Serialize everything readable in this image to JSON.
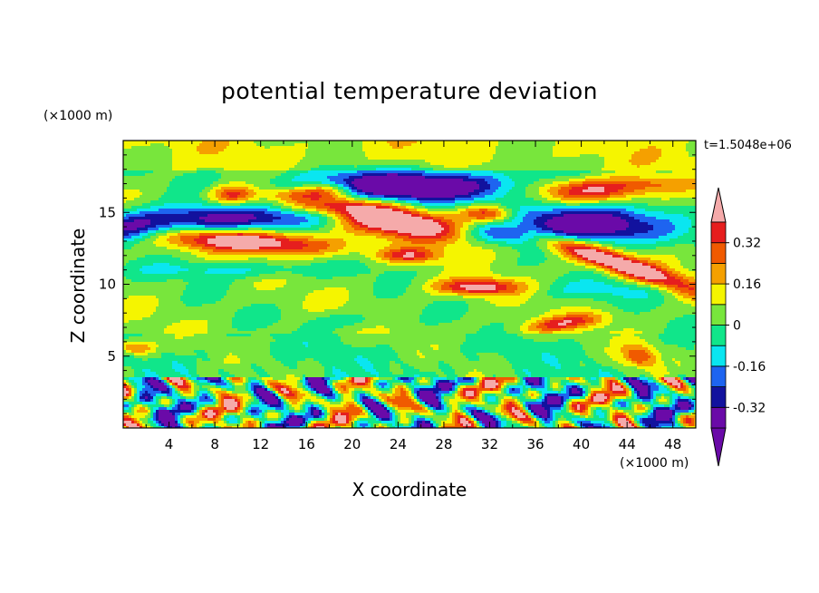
{
  "chart_data": {
    "type": "heatmap",
    "title": "potential temperature deviation",
    "xlabel": "X coordinate",
    "ylabel": "Z coordinate",
    "x_unit": "(×1000 m)",
    "z_unit": "(×1000 m)",
    "time_label": "t=1.5048e+06",
    "xlim": [
      0,
      50
    ],
    "ylim": [
      0,
      20
    ],
    "x_ticks": [
      4,
      8,
      12,
      16,
      20,
      24,
      28,
      32,
      36,
      40,
      44,
      48
    ],
    "y_ticks": [
      5,
      10,
      15
    ],
    "colorbar": {
      "levels": [
        -0.4,
        -0.32,
        -0.24,
        -0.16,
        -0.08,
        0,
        0.08,
        0.16,
        0.24,
        0.32,
        0.4
      ],
      "labels": [
        "0.32",
        "0.16",
        "0",
        "-0.16",
        "-0.32"
      ],
      "label_values": [
        0.32,
        0.16,
        0,
        -0.16,
        -0.32
      ],
      "colors": [
        "#6a0aa8",
        "#12129e",
        "#1e64f0",
        "#0ae6f0",
        "#10e68a",
        "#78e63c",
        "#f5f500",
        "#f5a000",
        "#f05a00",
        "#e61e1e"
      ],
      "under_color": "#6a0aa8",
      "over_color": "#f5aaaa"
    },
    "field_features": [
      {
        "region": "background",
        "value": 0.04
      },
      {
        "region": "warm band",
        "x": [
          17,
          30
        ],
        "z": [
          13.2,
          15.8
        ],
        "value": 0.5
      },
      {
        "region": "warm band",
        "x": [
          2,
          18
        ],
        "z": [
          12.2,
          13.4
        ],
        "value": 0.5
      },
      {
        "region": "warm band",
        "x": [
          36,
          50
        ],
        "z": [
          9.5,
          12.8
        ],
        "value": 0.5
      },
      {
        "region": "warm band",
        "x": [
          36,
          44
        ],
        "z": [
          15.5,
          16.8
        ],
        "value": 0.5
      },
      {
        "region": "warm band",
        "x": [
          28,
          34
        ],
        "z": [
          9.5,
          10.2
        ],
        "value": 0.5
      },
      {
        "region": "cold band",
        "x": [
          14,
          34
        ],
        "z": [
          16.2,
          17.7
        ],
        "value": -0.45
      },
      {
        "region": "cold band",
        "x": [
          35,
          45
        ],
        "z": [
          13.2,
          15.5
        ],
        "value": -0.45
      },
      {
        "region": "cold band",
        "x": [
          0,
          12
        ],
        "z": [
          13.3,
          15.5
        ],
        "value": -0.35
      },
      {
        "region": "convective layer",
        "x": [
          0,
          50
        ],
        "z": [
          0,
          3.5
        ],
        "value": "alternating ±0.4"
      }
    ]
  }
}
